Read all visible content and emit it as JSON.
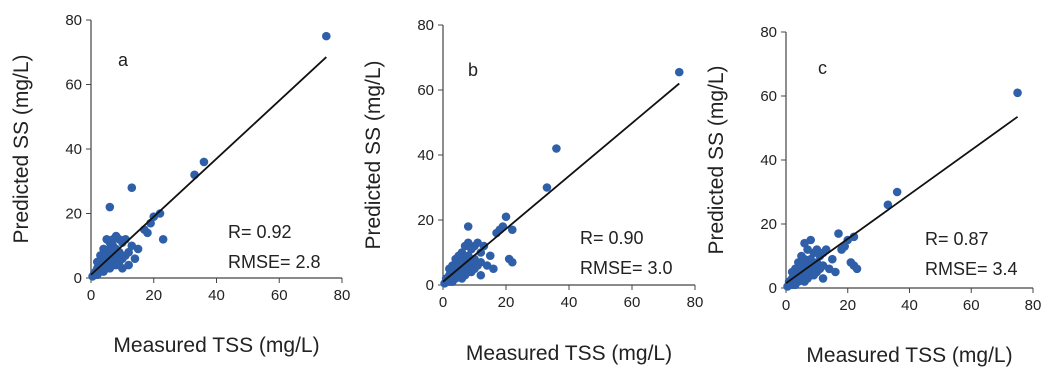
{
  "chart_data": [
    {
      "type": "scatter",
      "panel_label": "a",
      "xlabel": "Measured TSS (mg/L)",
      "ylabel": "Predicted SS (mg/L)",
      "xlim": [
        0,
        80
      ],
      "ylim": [
        0,
        80
      ],
      "xticks": [
        0,
        20,
        40,
        60,
        80
      ],
      "yticks": [
        0,
        20,
        40,
        60,
        80
      ],
      "stats": [
        "R= 0.92",
        "RMSE= 2.8"
      ],
      "marker_color": "#2e5fa8",
      "line_color": "#111111",
      "fit_line": [
        [
          0,
          1
        ],
        [
          75,
          68.5
        ]
      ],
      "points": [
        [
          75,
          75
        ],
        [
          36,
          36
        ],
        [
          33,
          32
        ],
        [
          13,
          28
        ],
        [
          6,
          22
        ],
        [
          22,
          20
        ],
        [
          20,
          19
        ],
        [
          19,
          17
        ],
        [
          17,
          15
        ],
        [
          18,
          14
        ],
        [
          23,
          12
        ],
        [
          13,
          10
        ],
        [
          11,
          12
        ],
        [
          10,
          11
        ],
        [
          9,
          12
        ],
        [
          8,
          13
        ],
        [
          7,
          12
        ],
        [
          12,
          8
        ],
        [
          11,
          7
        ],
        [
          10,
          6
        ],
        [
          9,
          8
        ],
        [
          9,
          5
        ],
        [
          8,
          9
        ],
        [
          8,
          6
        ],
        [
          8,
          4
        ],
        [
          7,
          10
        ],
        [
          7,
          8
        ],
        [
          7,
          6
        ],
        [
          7,
          4
        ],
        [
          6,
          11
        ],
        [
          6,
          9
        ],
        [
          6,
          7
        ],
        [
          6,
          5
        ],
        [
          6,
          3
        ],
        [
          5,
          12
        ],
        [
          5,
          8
        ],
        [
          5,
          6
        ],
        [
          5,
          4
        ],
        [
          5,
          3
        ],
        [
          4,
          9
        ],
        [
          4,
          7
        ],
        [
          4,
          5
        ],
        [
          4,
          3
        ],
        [
          4,
          2
        ],
        [
          3,
          7
        ],
        [
          3,
          5
        ],
        [
          3,
          4
        ],
        [
          3,
          3
        ],
        [
          3,
          2
        ],
        [
          2,
          5
        ],
        [
          2,
          3
        ],
        [
          2,
          2
        ],
        [
          2,
          1
        ],
        [
          1.5,
          2
        ],
        [
          1,
          1.5
        ],
        [
          1,
          1
        ],
        [
          0.5,
          0.5
        ],
        [
          14,
          6
        ],
        [
          12,
          4
        ],
        [
          10,
          3
        ],
        [
          15,
          9
        ]
      ]
    },
    {
      "type": "scatter",
      "panel_label": "b",
      "xlabel": "Measured TSS (mg/L)",
      "ylabel": "Predicted SS (mg/L)",
      "xlim": [
        0,
        80
      ],
      "ylim": [
        0,
        80
      ],
      "xticks": [
        0,
        20,
        40,
        60,
        80
      ],
      "yticks": [
        0,
        20,
        40,
        60,
        80
      ],
      "stats": [
        "R= 0.90",
        "RMSE= 3.0"
      ],
      "marker_color": "#2e5fa8",
      "line_color": "#111111",
      "fit_line": [
        [
          0,
          1
        ],
        [
          75,
          62
        ]
      ],
      "points": [
        [
          75,
          65.5
        ],
        [
          36,
          42
        ],
        [
          33,
          30
        ],
        [
          22,
          17
        ],
        [
          20,
          21
        ],
        [
          19,
          18
        ],
        [
          18,
          17
        ],
        [
          17,
          16
        ],
        [
          21,
          8
        ],
        [
          22,
          7
        ],
        [
          8,
          18
        ],
        [
          13,
          12
        ],
        [
          12,
          10
        ],
        [
          11,
          13
        ],
        [
          10,
          12
        ],
        [
          9,
          11
        ],
        [
          8,
          13
        ],
        [
          7,
          12
        ],
        [
          6,
          10
        ],
        [
          12,
          7
        ],
        [
          11,
          6
        ],
        [
          10,
          8
        ],
        [
          10,
          5
        ],
        [
          9,
          7
        ],
        [
          9,
          4
        ],
        [
          8,
          9
        ],
        [
          8,
          6
        ],
        [
          8,
          4
        ],
        [
          7,
          8
        ],
        [
          7,
          6
        ],
        [
          7,
          3
        ],
        [
          6,
          8
        ],
        [
          6,
          6
        ],
        [
          6,
          4
        ],
        [
          6,
          2
        ],
        [
          5,
          9
        ],
        [
          5,
          7
        ],
        [
          5,
          5
        ],
        [
          5,
          3
        ],
        [
          4,
          8
        ],
        [
          4,
          6
        ],
        [
          4,
          4
        ],
        [
          4,
          2
        ],
        [
          3,
          6
        ],
        [
          3,
          4
        ],
        [
          3,
          3
        ],
        [
          3,
          1
        ],
        [
          2,
          5
        ],
        [
          2,
          3
        ],
        [
          2,
          2
        ],
        [
          2,
          1
        ],
        [
          1,
          2
        ],
        [
          1,
          1
        ],
        [
          0.5,
          0.5
        ],
        [
          14,
          6
        ],
        [
          15,
          9
        ],
        [
          16,
          5
        ],
        [
          12,
          3
        ]
      ]
    },
    {
      "type": "scatter",
      "panel_label": "c",
      "xlabel": "Measured TSS (mg/L)",
      "ylabel": "Predicted SS (mg/L)",
      "xlim": [
        0,
        80
      ],
      "ylim": [
        0,
        80
      ],
      "xticks": [
        0,
        20,
        40,
        60,
        80
      ],
      "yticks": [
        0,
        20,
        40,
        60,
        80
      ],
      "stats": [
        "R= 0.87",
        "RMSE= 3.4"
      ],
      "marker_color": "#2e5fa8",
      "line_color": "#111111",
      "fit_line": [
        [
          0,
          1.5
        ],
        [
          75,
          53.5
        ]
      ],
      "points": [
        [
          75,
          61
        ],
        [
          36,
          30
        ],
        [
          33,
          26
        ],
        [
          22,
          16
        ],
        [
          20,
          15
        ],
        [
          19,
          13
        ],
        [
          17,
          17
        ],
        [
          18,
          12
        ],
        [
          21,
          8
        ],
        [
          22,
          7
        ],
        [
          23,
          6
        ],
        [
          13,
          12
        ],
        [
          12,
          11
        ],
        [
          11,
          10
        ],
        [
          10,
          12
        ],
        [
          9,
          11
        ],
        [
          8,
          15
        ],
        [
          7,
          12
        ],
        [
          6,
          14
        ],
        [
          12,
          7
        ],
        [
          11,
          6
        ],
        [
          10,
          8
        ],
        [
          10,
          5
        ],
        [
          9,
          7
        ],
        [
          9,
          4
        ],
        [
          8,
          9
        ],
        [
          8,
          6
        ],
        [
          8,
          4
        ],
        [
          7,
          8
        ],
        [
          7,
          6
        ],
        [
          7,
          3
        ],
        [
          6,
          9
        ],
        [
          6,
          6
        ],
        [
          6,
          4
        ],
        [
          6,
          2
        ],
        [
          5,
          10
        ],
        [
          5,
          7
        ],
        [
          5,
          5
        ],
        [
          5,
          3
        ],
        [
          4,
          8
        ],
        [
          4,
          6
        ],
        [
          4,
          4
        ],
        [
          4,
          2
        ],
        [
          3,
          6
        ],
        [
          3,
          4
        ],
        [
          3,
          3
        ],
        [
          3,
          1
        ],
        [
          2,
          5
        ],
        [
          2,
          3
        ],
        [
          2,
          2
        ],
        [
          2,
          1
        ],
        [
          1,
          2
        ],
        [
          1,
          1
        ],
        [
          0.5,
          0.5
        ],
        [
          14,
          6
        ],
        [
          15,
          9
        ],
        [
          16,
          5
        ],
        [
          12,
          3
        ]
      ]
    }
  ]
}
